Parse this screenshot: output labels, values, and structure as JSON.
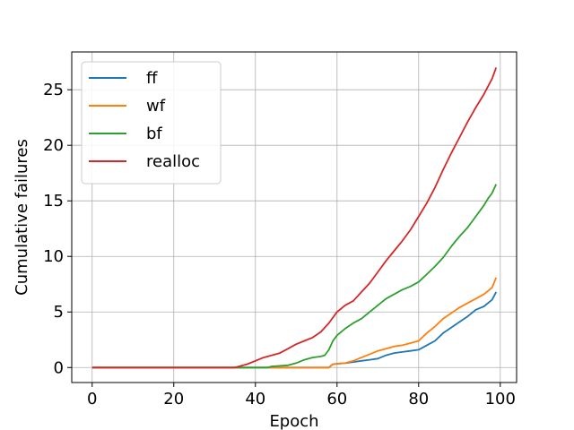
{
  "chart_data": {
    "type": "line",
    "xlabel": "Epoch",
    "ylabel": "Cumulative failures",
    "xlim": [
      -5,
      104
    ],
    "ylim": [
      -1.35,
      28.4
    ],
    "xticks": [
      0,
      20,
      40,
      60,
      80,
      100
    ],
    "yticks": [
      0,
      5,
      10,
      15,
      20,
      25
    ],
    "grid": true,
    "legend_position": "top-left",
    "series": [
      {
        "name": "ff",
        "color": "#1f77b4",
        "points": [
          [
            0,
            0
          ],
          [
            58,
            0
          ],
          [
            59,
            0.3
          ],
          [
            62,
            0.4
          ],
          [
            64,
            0.5
          ],
          [
            66,
            0.6
          ],
          [
            68,
            0.7
          ],
          [
            70,
            0.8
          ],
          [
            72,
            1.1
          ],
          [
            74,
            1.3
          ],
          [
            76,
            1.4
          ],
          [
            78,
            1.5
          ],
          [
            80,
            1.6
          ],
          [
            82,
            2.0
          ],
          [
            84,
            2.4
          ],
          [
            86,
            3.1
          ],
          [
            88,
            3.6
          ],
          [
            90,
            4.1
          ],
          [
            92,
            4.6
          ],
          [
            94,
            5.2
          ],
          [
            96,
            5.5
          ],
          [
            98,
            6.1
          ],
          [
            99,
            6.8
          ]
        ]
      },
      {
        "name": "wf",
        "color": "#ff7f0e",
        "points": [
          [
            0,
            0
          ],
          [
            58,
            0
          ],
          [
            59,
            0.3
          ],
          [
            62,
            0.4
          ],
          [
            64,
            0.6
          ],
          [
            66,
            0.9
          ],
          [
            68,
            1.2
          ],
          [
            70,
            1.5
          ],
          [
            72,
            1.7
          ],
          [
            74,
            1.9
          ],
          [
            76,
            2.0
          ],
          [
            78,
            2.2
          ],
          [
            80,
            2.4
          ],
          [
            82,
            3.1
          ],
          [
            84,
            3.7
          ],
          [
            86,
            4.4
          ],
          [
            88,
            4.9
          ],
          [
            90,
            5.4
          ],
          [
            92,
            5.8
          ],
          [
            94,
            6.2
          ],
          [
            96,
            6.6
          ],
          [
            98,
            7.2
          ],
          [
            99,
            8.1
          ]
        ]
      },
      {
        "name": "bf",
        "color": "#2ca02c",
        "points": [
          [
            0,
            0
          ],
          [
            43,
            0
          ],
          [
            44,
            0.1
          ],
          [
            48,
            0.2
          ],
          [
            50,
            0.4
          ],
          [
            52,
            0.7
          ],
          [
            54,
            0.9
          ],
          [
            56,
            1.0
          ],
          [
            57,
            1.1
          ],
          [
            58,
            1.6
          ],
          [
            59,
            2.4
          ],
          [
            60,
            2.9
          ],
          [
            62,
            3.5
          ],
          [
            64,
            4.0
          ],
          [
            66,
            4.4
          ],
          [
            68,
            5.0
          ],
          [
            70,
            5.6
          ],
          [
            72,
            6.2
          ],
          [
            74,
            6.6
          ],
          [
            76,
            7.0
          ],
          [
            78,
            7.3
          ],
          [
            80,
            7.7
          ],
          [
            82,
            8.4
          ],
          [
            84,
            9.1
          ],
          [
            86,
            9.9
          ],
          [
            88,
            10.9
          ],
          [
            90,
            11.8
          ],
          [
            92,
            12.6
          ],
          [
            94,
            13.6
          ],
          [
            96,
            14.6
          ],
          [
            97,
            15.2
          ],
          [
            98,
            15.7
          ],
          [
            99,
            16.5
          ]
        ]
      },
      {
        "name": "realloc",
        "color": "#d62728",
        "points": [
          [
            0,
            0
          ],
          [
            35,
            0
          ],
          [
            36,
            0.1
          ],
          [
            38,
            0.3
          ],
          [
            40,
            0.6
          ],
          [
            42,
            0.9
          ],
          [
            44,
            1.1
          ],
          [
            46,
            1.3
          ],
          [
            48,
            1.7
          ],
          [
            50,
            2.1
          ],
          [
            52,
            2.4
          ],
          [
            54,
            2.7
          ],
          [
            56,
            3.2
          ],
          [
            58,
            4.0
          ],
          [
            60,
            5.0
          ],
          [
            62,
            5.6
          ],
          [
            64,
            6.0
          ],
          [
            66,
            6.8
          ],
          [
            68,
            7.6
          ],
          [
            70,
            8.6
          ],
          [
            72,
            9.6
          ],
          [
            74,
            10.5
          ],
          [
            76,
            11.4
          ],
          [
            78,
            12.4
          ],
          [
            80,
            13.6
          ],
          [
            82,
            14.8
          ],
          [
            84,
            16.2
          ],
          [
            86,
            17.8
          ],
          [
            88,
            19.3
          ],
          [
            90,
            20.7
          ],
          [
            92,
            22.1
          ],
          [
            94,
            23.4
          ],
          [
            96,
            24.6
          ],
          [
            98,
            26.0
          ],
          [
            99,
            27.0
          ]
        ]
      }
    ]
  }
}
